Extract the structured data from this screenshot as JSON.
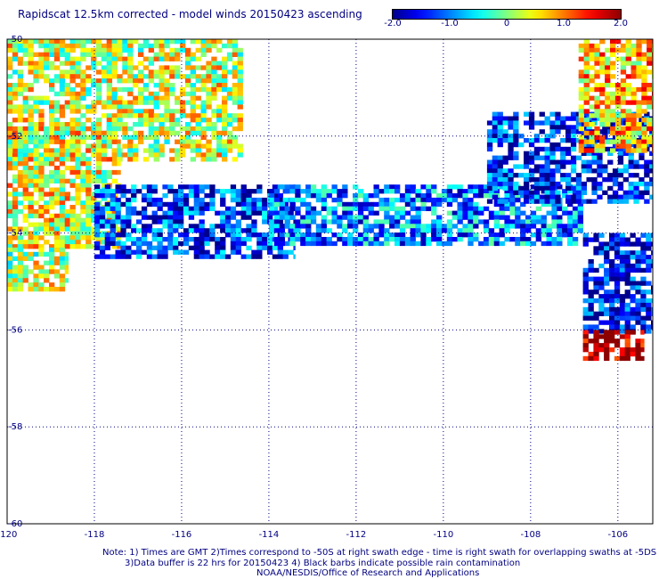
{
  "title": "Rapidscat 12.5km corrected - model winds 20150423 ascending",
  "colorbar": {
    "min": -2.0,
    "max": 2.0,
    "ticks": [
      "-2.0",
      "-1.0",
      "0",
      "1.0",
      "2.0"
    ],
    "tick_values": [
      -2.0,
      -1.0,
      0,
      1.0,
      2.0
    ]
  },
  "notes": [
    "Note: 1) Times are GMT 2)Times correspond to -50S at right swath edge - time is right swath for overlapping swaths at -5DS",
    "3)Data buffer is 22 hrs for 20150423 4) Black barbs indicate possible rain contamination",
    "NOAA/NESDIS/Office of Research and Applications"
  ],
  "chart_data": {
    "type": "heatmap",
    "title": "Rapidscat 12.5km corrected - model winds 20150423 ascending",
    "xlabel": "",
    "ylabel": "",
    "xlim": [
      -120,
      -105.2
    ],
    "ylim": [
      -60,
      -50
    ],
    "x_ticks": [
      -120,
      -118,
      -116,
      -114,
      -112,
      -110,
      -108,
      -106
    ],
    "x_tick_labels": [
      "-120",
      "-118",
      "-116",
      "-114",
      "-112",
      "-110",
      "-108",
      "-106"
    ],
    "y_ticks": [
      -50,
      -52,
      -54,
      -56,
      -58,
      -60
    ],
    "y_tick_labels": [
      "-50",
      "-52",
      "-54",
      "-56",
      "-58",
      "-60"
    ],
    "grid": true,
    "value_range": [
      -2.0,
      2.0
    ],
    "regions": [
      {
        "name": "",
        "lon": [
          -120,
          -114.6
        ],
        "lat": [
          -52.5,
          -50.0
        ],
        "mean": 0.3
      },
      {
        "name": "",
        "lon": [
          -120,
          -117.4
        ],
        "lat": [
          -54.3,
          -51.8
        ],
        "mean": 0.4
      },
      {
        "name": "",
        "lon": [
          -118,
          -113.4
        ],
        "lat": [
          -54.5,
          -53.0
        ],
        "mean": -1.3
      },
      {
        "name": "",
        "lon": [
          -114,
          -106.8
        ],
        "lat": [
          -54.2,
          -53.0
        ],
        "mean": -1.0
      },
      {
        "name": "",
        "lon": [
          -109,
          -105.2
        ],
        "lat": [
          -53.4,
          -51.5
        ],
        "mean": -1.4
      },
      {
        "name": "",
        "lon": [
          -106.9,
          -105.2
        ],
        "lat": [
          -52.3,
          -50.0
        ],
        "mean": 0.7
      },
      {
        "name": "",
        "lon": [
          -120,
          -118.6
        ],
        "lat": [
          -55.2,
          -54.3
        ],
        "mean": 0.2
      },
      {
        "name": "",
        "lon": [
          -106.8,
          -105.2
        ],
        "lat": [
          -56.0,
          -54.0
        ],
        "mean": -1.6
      },
      {
        "name": "",
        "lon": [
          -106.8,
          -105.4
        ],
        "lat": [
          -56.6,
          -56.0
        ],
        "mean": 2.0
      }
    ]
  }
}
